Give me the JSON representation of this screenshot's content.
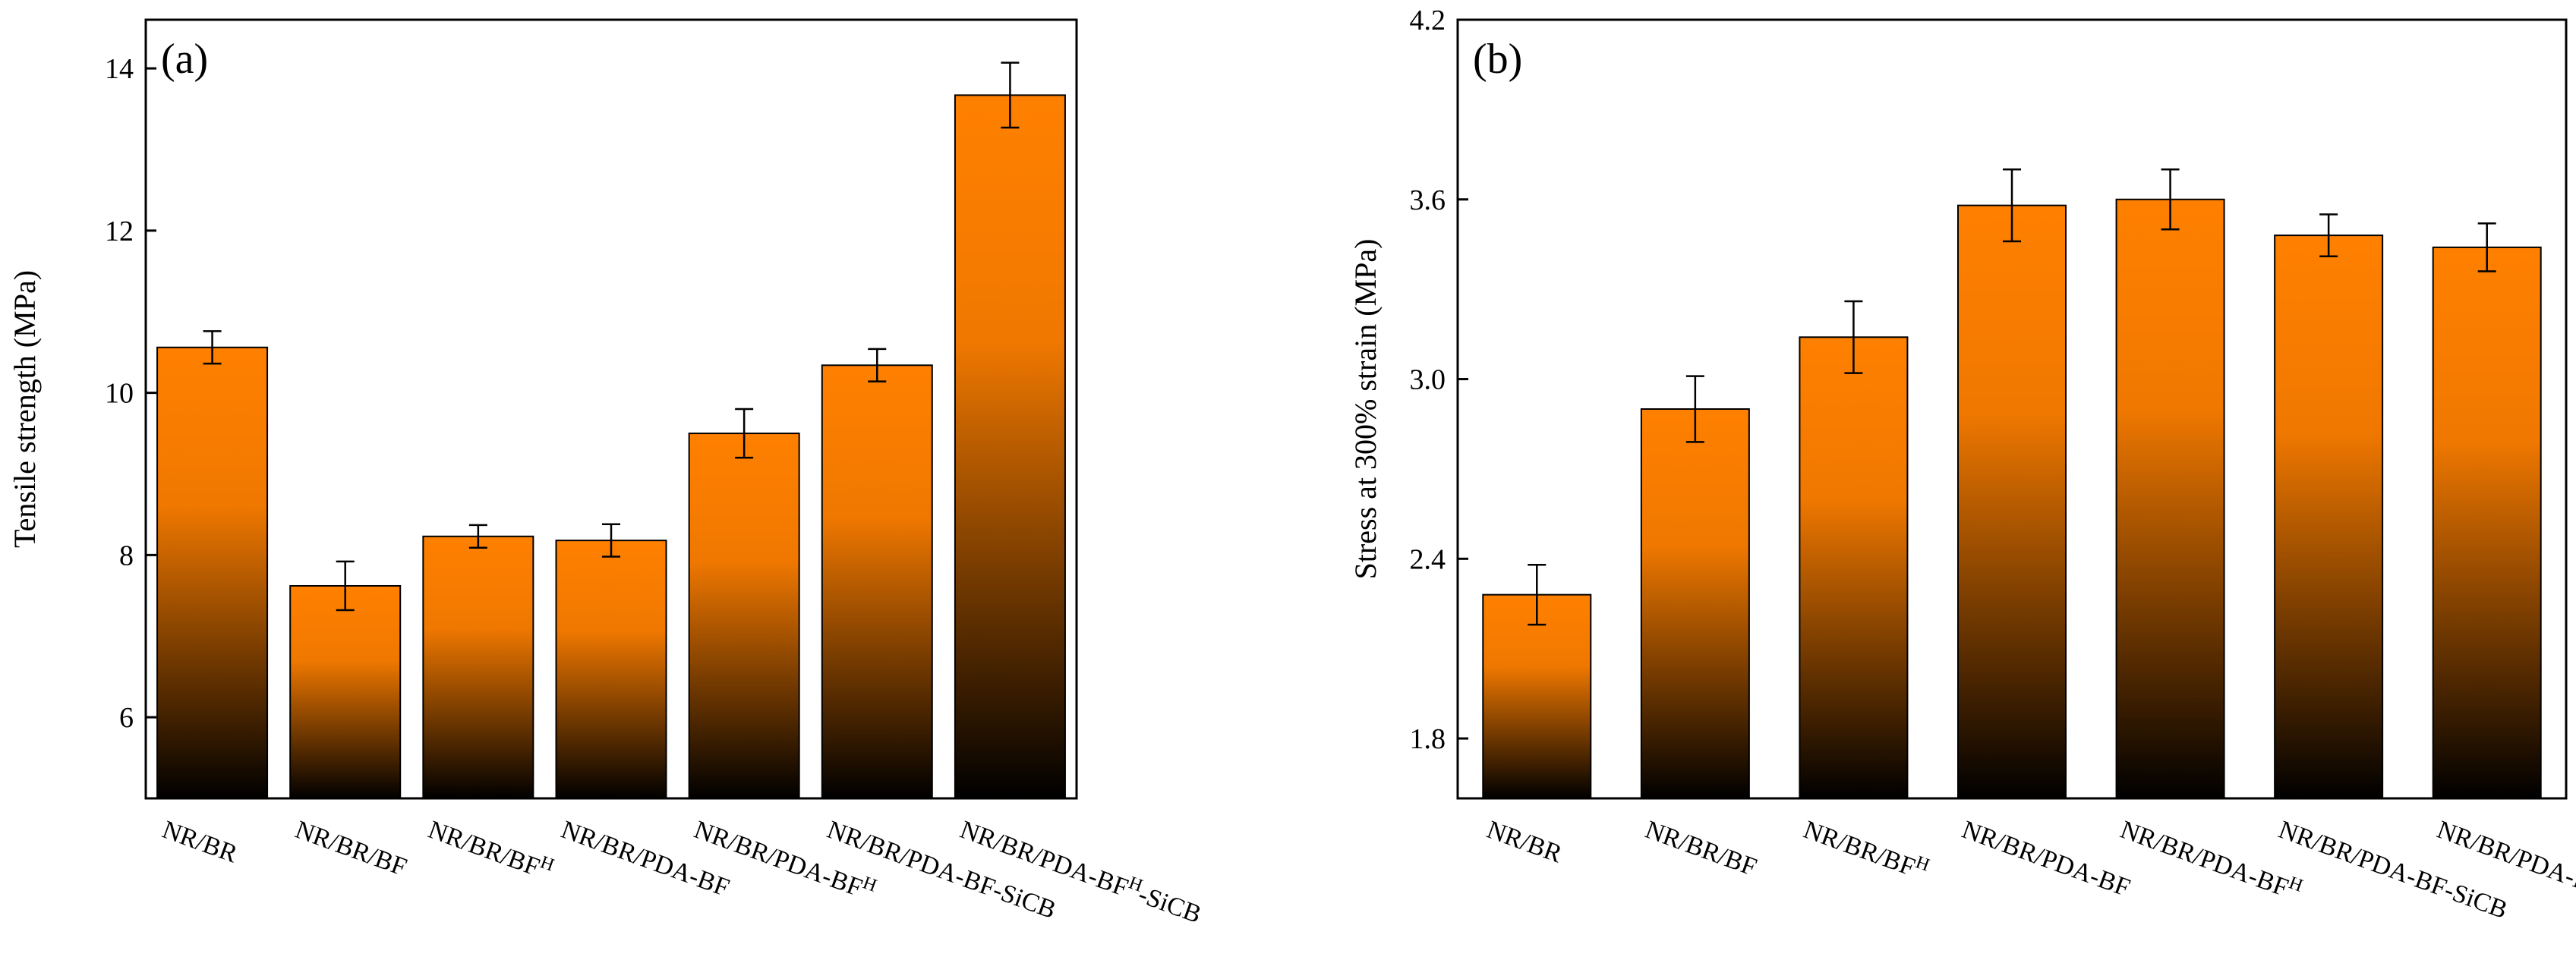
{
  "chart_data": [
    {
      "type": "bar",
      "panel_label": "(a)",
      "ylabel": "Tensile strength (MPa)",
      "xlabel": "",
      "ylim": [
        5,
        14.6
      ],
      "yticks": [
        6,
        8,
        10,
        12,
        14
      ],
      "grid": false,
      "categories": [
        {
          "base": "NR/BR",
          "sup": ""
        },
        {
          "base": "NR/BR/BF",
          "sup": ""
        },
        {
          "base": "NR/BR/BF",
          "sup": "H"
        },
        {
          "base": "NR/BR/PDA-BF",
          "sup": ""
        },
        {
          "base": "NR/BR/PDA-BF",
          "sup": "H"
        },
        {
          "base": "NR/BR/PDA-BF-SiCB",
          "sup": ""
        },
        {
          "base": "NR/BR/PDA-BF",
          "sup": "H",
          "suffix": "-SiCB"
        }
      ],
      "values": [
        10.56,
        7.62,
        8.23,
        8.18,
        9.5,
        10.34,
        13.67
      ],
      "errors": [
        0.2,
        0.3,
        0.14,
        0.2,
        0.3,
        0.2,
        0.4
      ]
    },
    {
      "type": "bar",
      "panel_label": "(b)",
      "ylabel": "Stress at 300% strain (MPa)",
      "xlabel": "",
      "ylim": [
        1.6,
        4.2
      ],
      "yticks": [
        1.8,
        2.4,
        3.0,
        3.6,
        4.2
      ],
      "grid": false,
      "categories": [
        {
          "base": "NR/BR",
          "sup": ""
        },
        {
          "base": "NR/BR/BF",
          "sup": ""
        },
        {
          "base": "NR/BR/BF",
          "sup": "H"
        },
        {
          "base": "NR/BR/PDA-BF",
          "sup": ""
        },
        {
          "base": "NR/BR/PDA-BF",
          "sup": "H"
        },
        {
          "base": "NR/BR/PDA-BF-SiCB",
          "sup": ""
        },
        {
          "base": "NR/BR/PDA-BF",
          "sup": "H",
          "suffix": "-SiCB"
        }
      ],
      "values": [
        2.28,
        2.9,
        3.14,
        3.58,
        3.6,
        3.48,
        3.44
      ],
      "errors": [
        0.1,
        0.11,
        0.12,
        0.12,
        0.1,
        0.07,
        0.08
      ]
    }
  ],
  "colors": {
    "bar_top": "#ff8000",
    "bar_mid": "#f07800",
    "bar_bottom": "#000000",
    "axis": "#000000"
  }
}
